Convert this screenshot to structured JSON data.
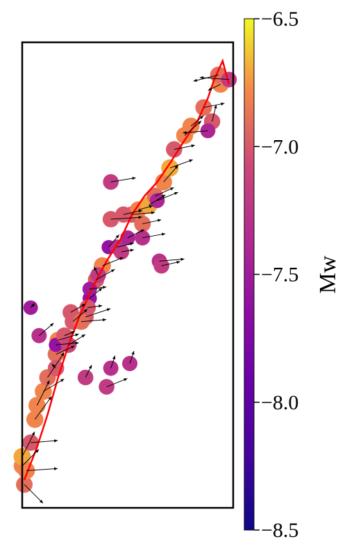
{
  "chart_data": {
    "type": "scatter",
    "title": "",
    "xlabel": "",
    "ylabel": "",
    "xlim": [
      0,
      100
    ],
    "ylim": [
      0,
      100
    ],
    "grid": false,
    "colorbar": {
      "label": "Mw",
      "colormap": "plasma",
      "range": [
        -8.5,
        -6.5
      ],
      "ticks": [
        -6.5,
        -7.0,
        -7.5,
        -8.0,
        -8.5
      ],
      "tick_labels": [
        "−6.5",
        "−7.0",
        "−7.5",
        "−8.0",
        "−8.5"
      ],
      "position": "right"
    },
    "line_color": "#ff0000",
    "trace_line": {
      "x": [
        1,
        7,
        12,
        17,
        22,
        27,
        33,
        40,
        47,
        52,
        58,
        64,
        70,
        77,
        83,
        88,
        91,
        95,
        98
      ],
      "y": [
        6,
        13,
        20,
        28,
        35,
        41,
        47,
        53,
        58,
        63,
        67,
        70,
        74,
        79,
        83,
        88,
        92,
        96,
        91
      ]
    },
    "points": [
      {
        "x": 1,
        "y": 5,
        "mw": -6.9,
        "u": 9,
        "v": -9
      },
      {
        "x": 0,
        "y": 9,
        "mw": -6.8,
        "u": 8,
        "v": 8
      },
      {
        "x": 0,
        "y": 11,
        "mw": -6.7,
        "u": 6,
        "v": 12
      },
      {
        "x": 2,
        "y": 8,
        "mw": -6.8,
        "u": 15,
        "v": 1
      },
      {
        "x": 4,
        "y": 14,
        "mw": -7.0,
        "u": 13,
        "v": 1
      },
      {
        "x": 6,
        "y": 19,
        "mw": -6.8,
        "u": 8,
        "v": 11
      },
      {
        "x": 7,
        "y": 22,
        "mw": -6.8,
        "u": 6,
        "v": 12
      },
      {
        "x": 10,
        "y": 25,
        "mw": -6.8,
        "u": 10,
        "v": 6
      },
      {
        "x": 12,
        "y": 28,
        "mw": -6.9,
        "u": 8,
        "v": 12
      },
      {
        "x": 8,
        "y": 37,
        "mw": -7.3,
        "u": 7,
        "v": 6
      },
      {
        "x": 16,
        "y": 33,
        "mw": -6.9,
        "u": 9,
        "v": 4
      },
      {
        "x": 17,
        "y": 36,
        "mw": -6.8,
        "u": 10,
        "v": 3
      },
      {
        "x": 16,
        "y": 35,
        "mw": -7.6,
        "u": 11,
        "v": 1
      },
      {
        "x": 24,
        "y": 40,
        "mw": -7.0,
        "u": 7,
        "v": 6
      },
      {
        "x": 30,
        "y": 41,
        "mw": -7.0,
        "u": 12,
        "v": 4
      },
      {
        "x": 23,
        "y": 42,
        "mw": -7.0,
        "u": 7,
        "v": 4
      },
      {
        "x": 32,
        "y": 45,
        "mw": -7.6,
        "u": 6,
        "v": 5
      },
      {
        "x": 35,
        "y": 49,
        "mw": -7.0,
        "u": 9,
        "v": 5
      },
      {
        "x": 38,
        "y": 52,
        "mw": -6.8,
        "u": 10,
        "v": 4
      },
      {
        "x": 41,
        "y": 56,
        "mw": -7.6,
        "u": 5,
        "v": 6
      },
      {
        "x": 45,
        "y": 56,
        "mw": -7.3,
        "u": 8,
        "v": 2
      },
      {
        "x": 50,
        "y": 58,
        "mw": -7.4,
        "u": 8,
        "v": 4
      },
      {
        "x": 52,
        "y": 63,
        "mw": -7.0,
        "u": 11,
        "v": 1
      },
      {
        "x": 55,
        "y": 64,
        "mw": -6.8,
        "u": 7,
        "v": 2
      },
      {
        "x": 57,
        "y": 61,
        "mw": -6.9,
        "u": 9,
        "v": 2
      },
      {
        "x": 60,
        "y": 65,
        "mw": -6.7,
        "u": 8,
        "v": 5
      },
      {
        "x": 63,
        "y": 67,
        "mw": -6.9,
        "u": 9,
        "v": 4
      },
      {
        "x": 64,
        "y": 66,
        "mw": -7.4,
        "u": 10,
        "v": 4
      },
      {
        "x": 67,
        "y": 70,
        "mw": -6.8,
        "u": 7,
        "v": 8
      },
      {
        "x": 70,
        "y": 73,
        "mw": -6.7,
        "u": 11,
        "v": 4
      },
      {
        "x": 72,
        "y": 77,
        "mw": -7.0,
        "u": 10,
        "v": 2
      },
      {
        "x": 77,
        "y": 80,
        "mw": -6.8,
        "u": 8,
        "v": 7
      },
      {
        "x": 80,
        "y": 82,
        "mw": -6.8,
        "u": 6,
        "v": 5
      },
      {
        "x": 86,
        "y": 86,
        "mw": -6.9,
        "u": 10,
        "v": 2
      },
      {
        "x": 94,
        "y": 91,
        "mw": -6.8,
        "u": -6,
        "v": -3
      },
      {
        "x": 93,
        "y": 93,
        "mw": -6.9,
        "u": -12,
        "v": -3
      },
      {
        "x": 98,
        "y": 92,
        "mw": -7.2,
        "u": -14,
        "v": 1
      },
      {
        "x": 90,
        "y": 83,
        "mw": -7.0,
        "u": 2,
        "v": 8
      },
      {
        "x": 88,
        "y": 81,
        "mw": -7.4,
        "u": -12,
        "v": -1
      },
      {
        "x": 42,
        "y": 70,
        "mw": -7.2,
        "u": 12,
        "v": 2
      },
      {
        "x": 48,
        "y": 63,
        "mw": -7.0,
        "u": 9,
        "v": 2
      },
      {
        "x": 42,
        "y": 62,
        "mw": -7.0,
        "u": 15,
        "v": 1
      },
      {
        "x": 47,
        "y": 55,
        "mw": -7.2,
        "u": 6,
        "v": 1
      },
      {
        "x": 65,
        "y": 53,
        "mw": -7.3,
        "u": 12,
        "v": 1
      },
      {
        "x": 57,
        "y": 58,
        "mw": -7.3,
        "u": 11,
        "v": 2
      },
      {
        "x": 66,
        "y": 52,
        "mw": -7.2,
        "u": 9,
        "v": 2
      },
      {
        "x": 36,
        "y": 50,
        "mw": -7.2,
        "u": -2,
        "v": 4
      },
      {
        "x": 32,
        "y": 47,
        "mw": -7.5,
        "u": 8,
        "v": 1
      },
      {
        "x": 31,
        "y": 43,
        "mw": -7.0,
        "u": 7,
        "v": 1
      },
      {
        "x": 28,
        "y": 40,
        "mw": -6.9,
        "u": 12,
        "v": 1
      },
      {
        "x": 20,
        "y": 37,
        "mw": -7.0,
        "u": 5,
        "v": 2
      },
      {
        "x": 22,
        "y": 35,
        "mw": -7.1,
        "u": 8,
        "v": 5
      },
      {
        "x": 30,
        "y": 28,
        "mw": -7.2,
        "u": 3,
        "v": 6
      },
      {
        "x": 40,
        "y": 26,
        "mw": -7.2,
        "u": 10,
        "v": 4
      },
      {
        "x": 51,
        "y": 31,
        "mw": -7.3,
        "u": 2,
        "v": 6
      },
      {
        "x": 42,
        "y": 30,
        "mw": -7.3,
        "u": 2,
        "v": 6
      },
      {
        "x": 4,
        "y": 43,
        "mw": -7.5,
        "u": 2,
        "v": 2
      },
      {
        "x": 16,
        "y": 30,
        "mw": -7.0,
        "u": -2,
        "v": 2
      }
    ]
  }
}
